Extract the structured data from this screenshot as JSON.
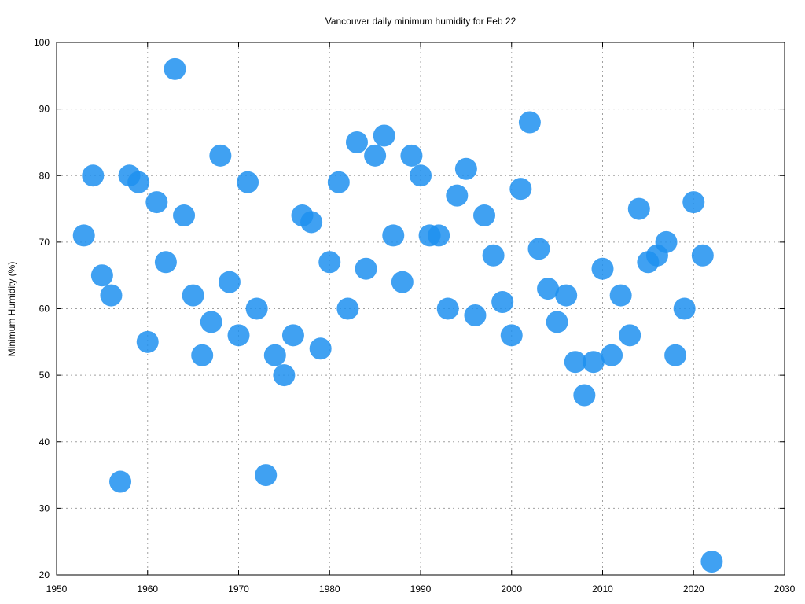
{
  "chart_data": {
    "type": "scatter",
    "title": "Vancouver daily minimum humidity for Feb 22",
    "xlabel": "",
    "ylabel": "Minimum Humidity (%)",
    "xlim": [
      1950,
      2030
    ],
    "ylim": [
      20,
      100
    ],
    "x_ticks": [
      1950,
      1960,
      1970,
      1980,
      1990,
      2000,
      2010,
      2020,
      2030
    ],
    "y_ticks": [
      20,
      30,
      40,
      50,
      60,
      70,
      80,
      90,
      100
    ],
    "grid": true,
    "marker_color": "#1E90F0",
    "series": [
      {
        "points": [
          [
            1953,
            71
          ],
          [
            1954,
            80
          ],
          [
            1955,
            65
          ],
          [
            1956,
            62
          ],
          [
            1957,
            34
          ],
          [
            1958,
            80
          ],
          [
            1959,
            79
          ],
          [
            1960,
            55
          ],
          [
            1961,
            76
          ],
          [
            1962,
            67
          ],
          [
            1963,
            96
          ],
          [
            1964,
            74
          ],
          [
            1965,
            62
          ],
          [
            1966,
            53
          ],
          [
            1967,
            58
          ],
          [
            1968,
            83
          ],
          [
            1969,
            64
          ],
          [
            1970,
            56
          ],
          [
            1971,
            79
          ],
          [
            1972,
            60
          ],
          [
            1973,
            35
          ],
          [
            1974,
            53
          ],
          [
            1975,
            50
          ],
          [
            1976,
            56
          ],
          [
            1977,
            74
          ],
          [
            1978,
            73
          ],
          [
            1979,
            54
          ],
          [
            1980,
            67
          ],
          [
            1981,
            79
          ],
          [
            1982,
            60
          ],
          [
            1983,
            85
          ],
          [
            1984,
            66
          ],
          [
            1985,
            83
          ],
          [
            1986,
            86
          ],
          [
            1987,
            71
          ],
          [
            1988,
            64
          ],
          [
            1989,
            83
          ],
          [
            1990,
            80
          ],
          [
            1991,
            71
          ],
          [
            1992,
            71
          ],
          [
            1993,
            60
          ],
          [
            1994,
            77
          ],
          [
            1995,
            81
          ],
          [
            1996,
            59
          ],
          [
            1997,
            74
          ],
          [
            1998,
            68
          ],
          [
            1999,
            61
          ],
          [
            2000,
            56
          ],
          [
            2001,
            78
          ],
          [
            2002,
            88
          ],
          [
            2003,
            69
          ],
          [
            2004,
            63
          ],
          [
            2005,
            58
          ],
          [
            2006,
            62
          ],
          [
            2007,
            52
          ],
          [
            2008,
            47
          ],
          [
            2009,
            52
          ],
          [
            2010,
            66
          ],
          [
            2011,
            53
          ],
          [
            2012,
            62
          ],
          [
            2013,
            56
          ],
          [
            2014,
            75
          ],
          [
            2015,
            67
          ],
          [
            2016,
            68
          ],
          [
            2017,
            70
          ],
          [
            2018,
            53
          ],
          [
            2019,
            60
          ],
          [
            2020,
            76
          ],
          [
            2021,
            68
          ],
          [
            2022,
            22
          ]
        ]
      }
    ]
  }
}
